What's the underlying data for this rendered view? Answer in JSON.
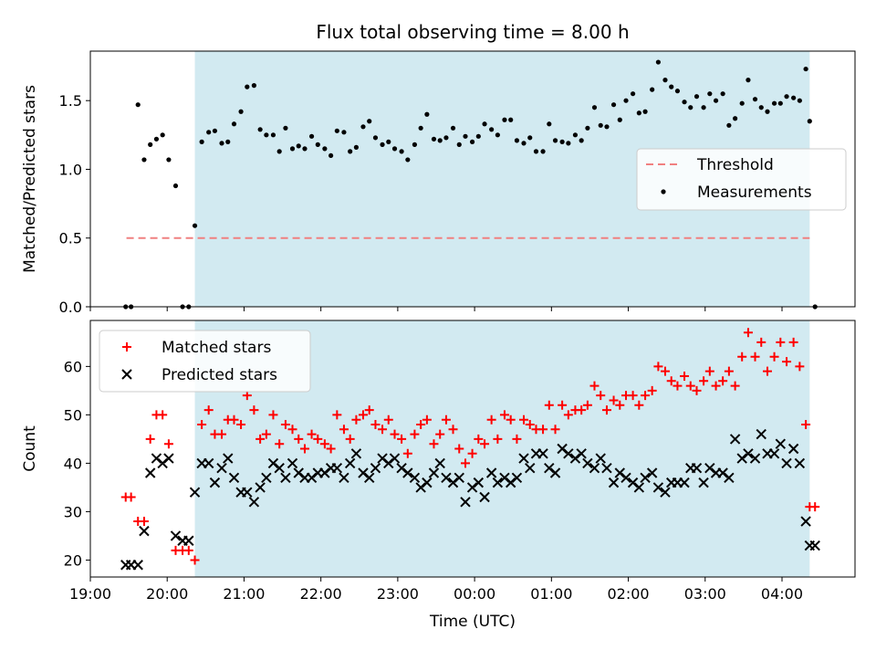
{
  "chart_data": [
    {
      "type": "scatter",
      "title": "Flux total observing time = 8.00 h",
      "ylabel": "Matched/Predicted stars",
      "xlabel": "",
      "x_unit": "hours UTC (past 19:00 -> >24)",
      "xlim": [
        19.0,
        28.95
      ],
      "ylim": [
        0.0,
        1.86
      ],
      "yticks": [
        0.0,
        0.5,
        1.0,
        1.5
      ],
      "ytick_labels": [
        "0.0",
        "0.5",
        "1.0",
        "1.5"
      ],
      "shaded_span": [
        20.36,
        28.36
      ],
      "shade_color": "#add8e6",
      "legend_position": "center-right",
      "grid": false,
      "series": [
        {
          "name": "Threshold",
          "kind": "dashed-line",
          "color": "#f08080",
          "x": [
            19.47,
            28.36
          ],
          "y": [
            0.5,
            0.5
          ]
        },
        {
          "name": "Measurements",
          "kind": "dot",
          "color": "#000000",
          "x": [
            19.46,
            19.53,
            19.62,
            19.7,
            19.78,
            19.86,
            19.94,
            20.02,
            20.11,
            20.2,
            20.28,
            20.36,
            20.45,
            20.54,
            20.62,
            20.71,
            20.79,
            20.87,
            20.96,
            21.04,
            21.13,
            21.21,
            21.29,
            21.38,
            21.46,
            21.54,
            21.63,
            21.71,
            21.79,
            21.88,
            21.96,
            22.05,
            22.13,
            22.21,
            22.3,
            22.38,
            22.46,
            22.55,
            22.63,
            22.71,
            22.8,
            22.88,
            22.96,
            23.05,
            23.13,
            23.22,
            23.3,
            23.38,
            23.47,
            23.55,
            23.63,
            23.72,
            23.8,
            23.88,
            23.97,
            24.05,
            24.13,
            24.22,
            24.3,
            24.39,
            24.47,
            24.55,
            24.64,
            24.72,
            24.8,
            24.89,
            24.97,
            25.05,
            25.14,
            25.22,
            25.31,
            25.39,
            25.47,
            25.56,
            25.64,
            25.72,
            25.81,
            25.89,
            25.97,
            26.06,
            26.14,
            26.22,
            26.31,
            26.39,
            26.48,
            26.56,
            26.64,
            26.73,
            26.81,
            26.89,
            26.98,
            27.06,
            27.14,
            27.23,
            27.31,
            27.39,
            27.48,
            27.56,
            27.65,
            27.73,
            27.81,
            27.9,
            27.98,
            28.06,
            28.15,
            28.23,
            28.31,
            28.36,
            28.43
          ],
          "y": [
            0.0,
            0.0,
            1.47,
            1.07,
            1.18,
            1.22,
            1.25,
            1.07,
            0.88,
            0.0,
            0.0,
            0.59,
            1.2,
            1.27,
            1.28,
            1.19,
            1.2,
            1.33,
            1.42,
            1.6,
            1.61,
            1.29,
            1.25,
            1.25,
            1.13,
            1.3,
            1.15,
            1.17,
            1.15,
            1.24,
            1.18,
            1.15,
            1.1,
            1.28,
            1.27,
            1.13,
            1.16,
            1.31,
            1.35,
            1.23,
            1.18,
            1.2,
            1.15,
            1.13,
            1.07,
            1.18,
            1.3,
            1.4,
            1.22,
            1.21,
            1.23,
            1.3,
            1.18,
            1.24,
            1.2,
            1.24,
            1.33,
            1.29,
            1.25,
            1.36,
            1.36,
            1.21,
            1.19,
            1.23,
            1.13,
            1.13,
            1.33,
            1.21,
            1.2,
            1.19,
            1.25,
            1.21,
            1.3,
            1.45,
            1.32,
            1.31,
            1.47,
            1.36,
            1.5,
            1.55,
            1.41,
            1.42,
            1.58,
            1.78,
            1.65,
            1.6,
            1.57,
            1.49,
            1.45,
            1.53,
            1.45,
            1.55,
            1.5,
            1.55,
            1.32,
            1.37,
            1.48,
            1.65,
            1.51,
            1.45,
            1.42,
            1.48,
            1.48,
            1.53,
            1.52,
            1.5,
            1.73,
            1.35,
            0.0
          ]
        }
      ]
    },
    {
      "type": "scatter",
      "title": "",
      "xlabel": "Time (UTC)",
      "ylabel": "Count",
      "xlim": [
        19.0,
        28.95
      ],
      "ylim": [
        16.5,
        69.5
      ],
      "yticks": [
        20,
        30,
        40,
        50,
        60
      ],
      "ytick_labels": [
        "20",
        "30",
        "40",
        "50",
        "60"
      ],
      "xticks": [
        19,
        20,
        21,
        22,
        23,
        24,
        25,
        26,
        27,
        28
      ],
      "xtick_labels": [
        "19:00",
        "20:00",
        "21:00",
        "22:00",
        "23:00",
        "00:00",
        "01:00",
        "02:00",
        "03:00",
        "04:00"
      ],
      "shaded_span": [
        20.36,
        28.36
      ],
      "shade_color": "#add8e6",
      "legend_position": "top-left",
      "grid": false,
      "series": [
        {
          "name": "Matched stars",
          "marker": "plus",
          "color": "#ff0000",
          "x": [
            19.46,
            19.53,
            19.62,
            19.7,
            19.78,
            19.86,
            19.94,
            20.02,
            20.11,
            20.2,
            20.28,
            20.36,
            20.45,
            20.54,
            20.62,
            20.71,
            20.79,
            20.87,
            20.96,
            21.04,
            21.13,
            21.21,
            21.29,
            21.38,
            21.46,
            21.54,
            21.63,
            21.71,
            21.79,
            21.88,
            21.96,
            22.05,
            22.13,
            22.21,
            22.3,
            22.38,
            22.46,
            22.55,
            22.63,
            22.71,
            22.8,
            22.88,
            22.96,
            23.05,
            23.13,
            23.22,
            23.3,
            23.38,
            23.47,
            23.55,
            23.63,
            23.72,
            23.8,
            23.88,
            23.97,
            24.05,
            24.13,
            24.22,
            24.3,
            24.39,
            24.47,
            24.55,
            24.64,
            24.72,
            24.8,
            24.89,
            24.97,
            25.05,
            25.14,
            25.22,
            25.31,
            25.39,
            25.47,
            25.56,
            25.64,
            25.72,
            25.81,
            25.89,
            25.97,
            26.06,
            26.14,
            26.22,
            26.31,
            26.39,
            26.48,
            26.56,
            26.64,
            26.73,
            26.81,
            26.89,
            26.98,
            27.06,
            27.14,
            27.23,
            27.31,
            27.39,
            27.48,
            27.56,
            27.65,
            27.73,
            27.81,
            27.9,
            27.98,
            28.06,
            28.15,
            28.23,
            28.31,
            28.36,
            28.43
          ],
          "y": [
            33,
            33,
            28,
            28,
            45,
            50,
            50,
            44,
            22,
            22,
            22,
            20,
            48,
            51,
            46,
            46,
            49,
            49,
            48,
            54,
            51,
            45,
            46,
            50,
            44,
            48,
            47,
            45,
            43,
            46,
            45,
            44,
            43,
            50,
            47,
            45,
            49,
            50,
            51,
            48,
            47,
            49,
            46,
            45,
            42,
            46,
            48,
            49,
            44,
            46,
            49,
            47,
            43,
            40,
            42,
            45,
            44,
            49,
            45,
            50,
            49,
            45,
            49,
            48,
            47,
            47,
            52,
            47,
            52,
            50,
            51,
            51,
            52,
            56,
            54,
            51,
            53,
            52,
            54,
            54,
            52,
            54,
            55,
            60,
            59,
            57,
            56,
            58,
            56,
            55,
            57,
            59,
            56,
            57,
            59,
            56,
            62,
            67,
            62,
            65,
            59,
            62,
            65,
            61,
            65,
            60,
            48,
            31,
            31
          ]
        },
        {
          "name": "Predicted stars",
          "marker": "x",
          "color": "#000000",
          "x": [
            19.46,
            19.53,
            19.62,
            19.7,
            19.78,
            19.86,
            19.94,
            20.02,
            20.11,
            20.2,
            20.28,
            20.36,
            20.45,
            20.54,
            20.62,
            20.71,
            20.79,
            20.87,
            20.96,
            21.04,
            21.13,
            21.21,
            21.29,
            21.38,
            21.46,
            21.54,
            21.63,
            21.71,
            21.79,
            21.88,
            21.96,
            22.05,
            22.13,
            22.21,
            22.3,
            22.38,
            22.46,
            22.55,
            22.63,
            22.71,
            22.8,
            22.88,
            22.96,
            23.05,
            23.13,
            23.22,
            23.3,
            23.38,
            23.47,
            23.55,
            23.63,
            23.72,
            23.8,
            23.88,
            23.97,
            24.05,
            24.13,
            24.22,
            24.3,
            24.39,
            24.47,
            24.55,
            24.64,
            24.72,
            24.8,
            24.89,
            24.97,
            25.05,
            25.14,
            25.22,
            25.31,
            25.39,
            25.47,
            25.56,
            25.64,
            25.72,
            25.81,
            25.89,
            25.97,
            26.06,
            26.14,
            26.22,
            26.31,
            26.39,
            26.48,
            26.56,
            26.64,
            26.73,
            26.81,
            26.89,
            26.98,
            27.06,
            27.14,
            27.23,
            27.31,
            27.39,
            27.48,
            27.56,
            27.65,
            27.73,
            27.81,
            27.9,
            27.98,
            28.06,
            28.15,
            28.23,
            28.31,
            28.36,
            28.43
          ],
          "y": [
            19,
            19,
            19,
            26,
            38,
            41,
            40,
            41,
            25,
            24,
            24,
            34,
            40,
            40,
            36,
            39,
            41,
            37,
            34,
            34,
            32,
            35,
            37,
            40,
            39,
            37,
            40,
            38,
            37,
            37,
            38,
            38,
            39,
            39,
            37,
            40,
            42,
            38,
            37,
            39,
            41,
            40,
            41,
            39,
            38,
            37,
            35,
            36,
            38,
            40,
            37,
            36,
            37,
            32,
            35,
            36,
            33,
            38,
            36,
            37,
            36,
            37,
            41,
            39,
            42,
            42,
            39,
            38,
            43,
            42,
            41,
            42,
            40,
            39,
            41,
            39,
            36,
            38,
            37,
            36,
            35,
            37,
            38,
            35,
            34,
            36,
            36,
            36,
            39,
            39,
            36,
            39,
            38,
            38,
            37,
            45,
            41,
            42,
            41,
            46,
            42,
            42,
            44,
            40,
            43,
            40,
            28,
            23,
            23
          ]
        }
      ]
    }
  ]
}
